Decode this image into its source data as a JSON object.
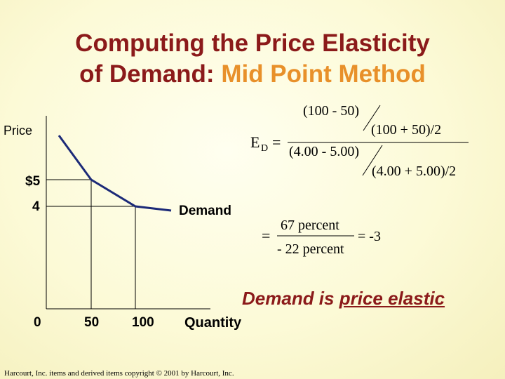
{
  "slide": {
    "title_line1": "Computing the Price Elasticity",
    "title_line2_prefix": "of Demand: ",
    "title_line2_accent": "Mid Point Method",
    "colors": {
      "title": "#8b1a1a",
      "accent": "#e8902a"
    }
  },
  "graph": {
    "y_axis_label": "Price",
    "x_axis_label": "Quantity",
    "price_ticks": [
      "$5",
      "4"
    ],
    "quantity_ticks": [
      "0",
      "50",
      "100"
    ],
    "curve_label": "Demand"
  },
  "formula": {
    "lhs_main": "E",
    "lhs_sub": "D",
    "equals": "=",
    "num_top": "(100 - 50)",
    "num_bottom": "(100 + 50)/2",
    "den_top": "(4.00 - 5.00)",
    "den_bottom": "(4.00 + 5.00)/2",
    "result_num": "67 percent",
    "result_den": "- 22 percent",
    "result_value": "= -3"
  },
  "conclusion": {
    "prefix": "Demand is ",
    "emphasis": "price elastic"
  },
  "credit": "Harcourt, Inc. items and derived items copyright © 2001 by Harcourt, Inc."
}
